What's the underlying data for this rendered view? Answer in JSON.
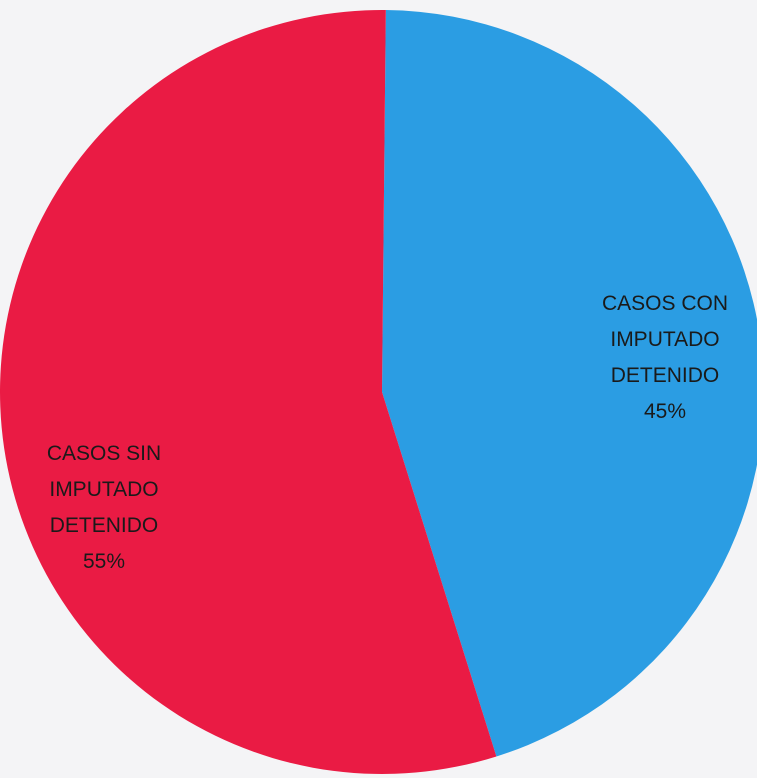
{
  "chart_data": {
    "type": "pie",
    "title": "",
    "slices": [
      {
        "label": [
          "CASOS CON",
          "IMPUTADO",
          "DETENIDO"
        ],
        "percent_label": "45%",
        "value": 45,
        "color": "#2b9de3"
      },
      {
        "label": [
          "CASOS SIN",
          "IMPUTADO",
          "DETENIDO"
        ],
        "percent_label": "55%",
        "value": 55,
        "color": "#ea1b44"
      }
    ]
  }
}
